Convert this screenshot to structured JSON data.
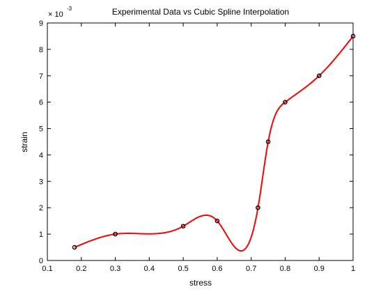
{
  "chart_data": {
    "type": "line",
    "title": "Experimental Data vs Cubic Spline Interpolation",
    "xlabel": "stress",
    "ylabel": "strain",
    "exponent_label": "× 10",
    "exponent_power": "-3",
    "xlim": [
      0.1,
      1.0
    ],
    "ylim": [
      0,
      9
    ],
    "y_scale_factor": 0.001,
    "x_ticks": [
      0.1,
      0.2,
      0.3,
      0.4,
      0.5,
      0.6,
      0.7,
      0.8,
      0.9,
      1
    ],
    "x_tick_labels": [
      "0.1",
      "0.2",
      "0.3",
      "0.4",
      "0.5",
      "0.6",
      "0.7",
      "0.8",
      "0.9",
      "1"
    ],
    "y_ticks": [
      0,
      1,
      2,
      3,
      4,
      5,
      6,
      7,
      8,
      9
    ],
    "y_tick_labels": [
      "0",
      "1",
      "2",
      "3",
      "4",
      "5",
      "6",
      "7",
      "8",
      "9"
    ],
    "grid": false,
    "series": [
      {
        "kind": "markers",
        "x": [
          0.18,
          0.3,
          0.5,
          0.6,
          0.72,
          0.75,
          0.8,
          0.9,
          1.0
        ],
        "y": [
          0.5,
          1.0,
          1.3,
          1.5,
          2.0,
          4.5,
          6.0,
          7.0,
          8.5
        ],
        "color": "#000000",
        "marker": "circle"
      },
      {
        "kind": "line",
        "x": [
          0.18,
          0.3,
          0.5,
          0.6,
          0.72,
          0.75,
          0.8,
          0.9,
          1.0
        ],
        "y": [
          0.5,
          1.0,
          1.3,
          1.5,
          2.0,
          4.5,
          6.0,
          7.0,
          8.5
        ],
        "interpolation": "cubic-spline",
        "color": "#ff0000"
      }
    ]
  }
}
